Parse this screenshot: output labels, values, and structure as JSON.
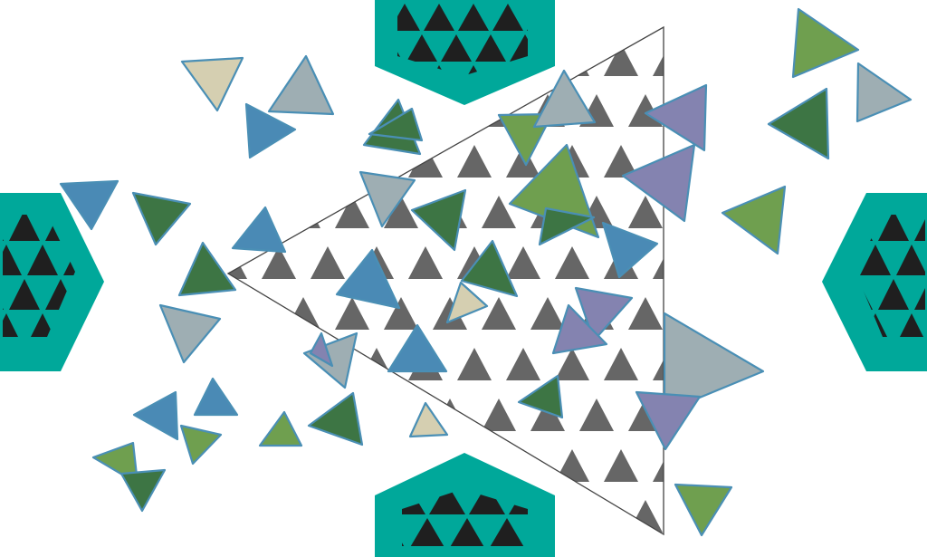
{
  "colors": {
    "background": "#ffffff",
    "teal": "#00a89a",
    "black": "#1f1f1f",
    "grey": "#666666",
    "outline": "#4a8fb5",
    "blue": "#4a8ab5",
    "green": "#6f9f4f",
    "dark_green": "#3d7544",
    "purple": "#8483b0",
    "light_grey": "#9eaeb3",
    "beige": "#d5cfb1"
  },
  "shapes": {
    "center_triangle": "large-outlined-triangle-pattern",
    "hexagons": [
      "top-hexagon",
      "bottom-hexagon",
      "left-hexagon",
      "right-hexagon"
    ],
    "scattered_triangles": 46
  }
}
